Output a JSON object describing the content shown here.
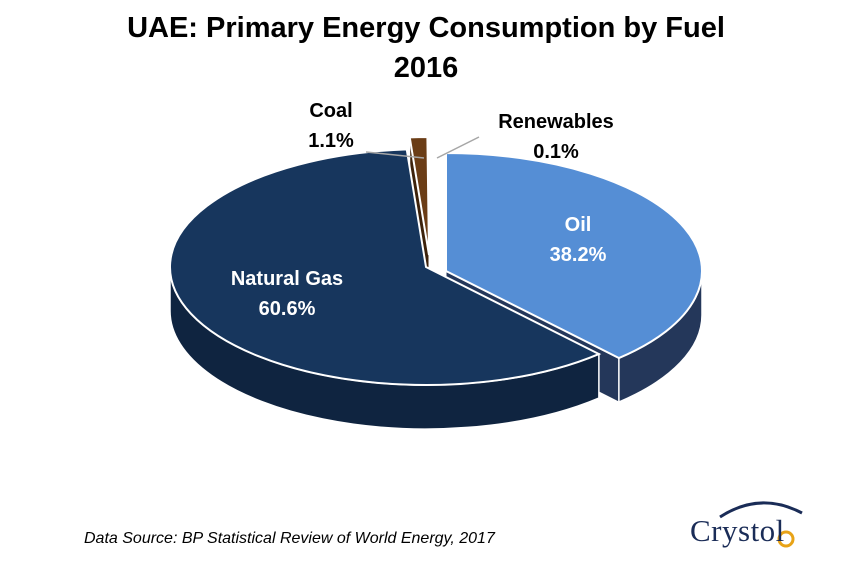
{
  "title_line1": "UAE: Primary Energy Consumption by Fuel",
  "title_line2": "2016",
  "source": "Data Source: BP Statistical Review of World Energy, 2017",
  "logo_text": "Crystol",
  "chart_data": {
    "type": "pie",
    "title": "UAE: Primary Energy Consumption by Fuel 2016",
    "slices": [
      {
        "label": "Oil",
        "value": 38.2,
        "display": "38.2%",
        "color": "#558ed5",
        "side": "#24375a",
        "label_color": "#ffffff"
      },
      {
        "label": "Natural Gas",
        "value": 60.6,
        "display": "60.6%",
        "color": "#17365d",
        "side": "#0f2440",
        "label_color": "#ffffff"
      },
      {
        "label": "Coal",
        "value": 1.1,
        "display": "1.1%",
        "color": "#6b3d16",
        "side": "#3d220b",
        "label_color": "#000000"
      },
      {
        "label": "Renewables",
        "value": 0.1,
        "display": "0.1%",
        "color": "#f79646",
        "side": "#b3661f",
        "label_color": "#000000"
      }
    ]
  }
}
